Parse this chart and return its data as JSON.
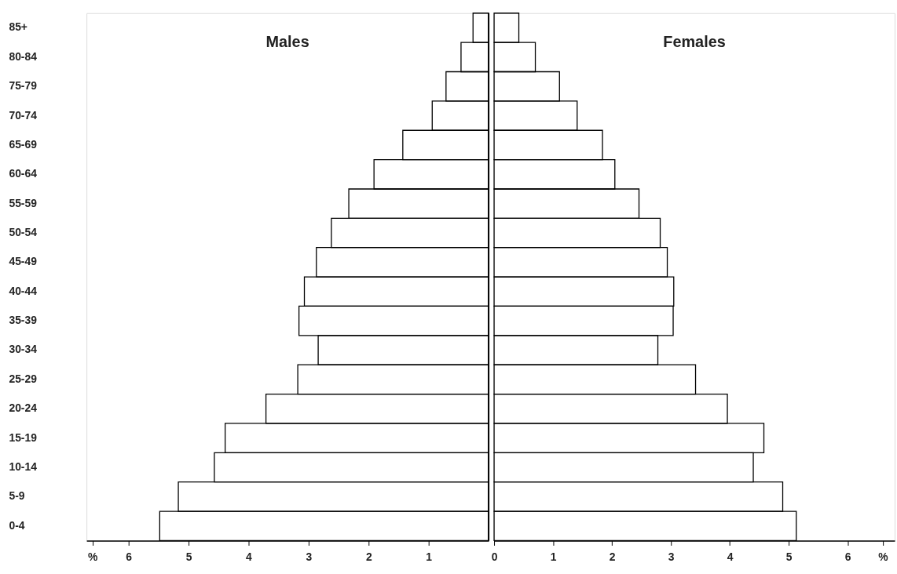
{
  "chart_data": [
    {
      "type": "bar",
      "orientation": "horizontal",
      "categories": [
        "85+",
        "80-84",
        "75-79",
        "70-74",
        "65-69",
        "60-64",
        "55-59",
        "50-54",
        "45-49",
        "40-44",
        "35-39",
        "30-34",
        "25-29",
        "20-24",
        "15-19",
        "10-14",
        "5-9",
        "0-4"
      ],
      "series": [
        {
          "name": "Males",
          "color": "#000000",
          "values": [
            0.26,
            0.46,
            0.71,
            0.94,
            1.43,
            1.91,
            2.33,
            2.62,
            2.87,
            3.07,
            3.16,
            2.84,
            3.18,
            3.71,
            4.39,
            4.57,
            5.17,
            5.48
          ]
        }
      ],
      "xlim": [
        6.7,
        0
      ],
      "tick_labels": true,
      "xticks": [
        {
          "value": 6.6,
          "label": "%"
        },
        6,
        5,
        4,
        3,
        2,
        1
      ],
      "ref_lines": [
        {
          "axis": "x",
          "value": 0,
          "color": "#000000"
        }
      ],
      "grid": false
    },
    {
      "type": "bar",
      "orientation": "horizontal",
      "series": [
        {
          "name": "Females",
          "color": "#000000",
          "values": [
            0.42,
            0.7,
            1.11,
            1.41,
            1.84,
            2.05,
            2.46,
            2.82,
            2.94,
            3.05,
            3.04,
            2.78,
            3.42,
            3.96,
            4.58,
            4.4,
            4.9,
            5.13
          ]
        }
      ],
      "xlim": [
        0,
        6.8
      ],
      "xticks": [
        0,
        1,
        2,
        3,
        4,
        5,
        6,
        {
          "value": 6.6,
          "label": "%"
        }
      ],
      "tick_labels": "x",
      "grid": false
    }
  ]
}
